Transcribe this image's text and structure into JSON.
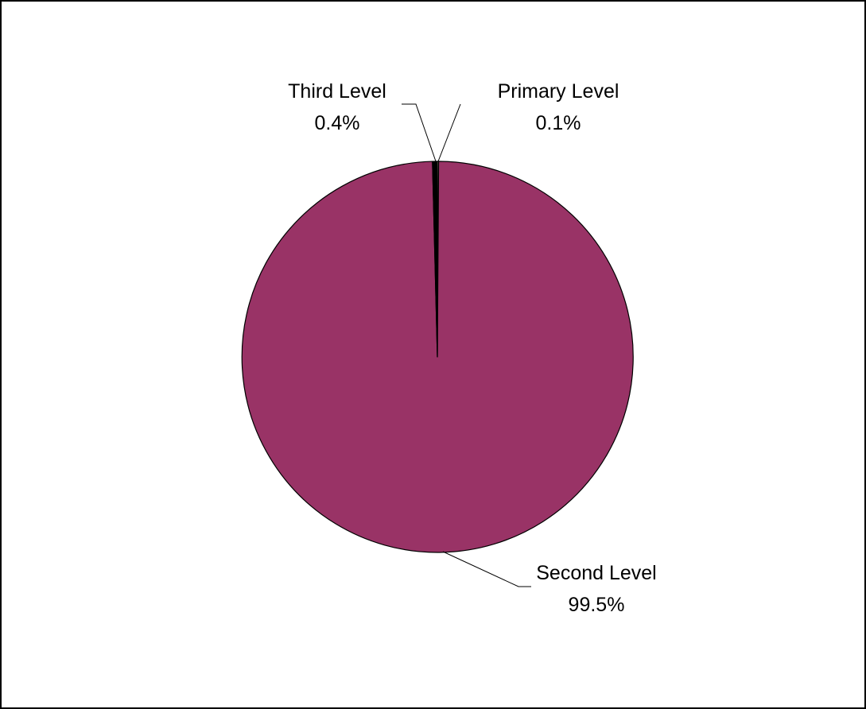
{
  "chart_data": {
    "type": "pie",
    "title": "",
    "slices": [
      {
        "label": "Primary Level",
        "value": 0.1,
        "display": "0.1%",
        "color": "#ffffcc"
      },
      {
        "label": "Second Level",
        "value": 99.5,
        "display": "99.5%",
        "color": "#993366"
      },
      {
        "label": "Third Level",
        "value": 0.4,
        "display": "0.4%",
        "color": "#000000"
      }
    ],
    "start_angle": "top (12 o'clock)",
    "direction": "clockwise",
    "legend": "none",
    "label_style": "category name and percentage with leader lines"
  }
}
